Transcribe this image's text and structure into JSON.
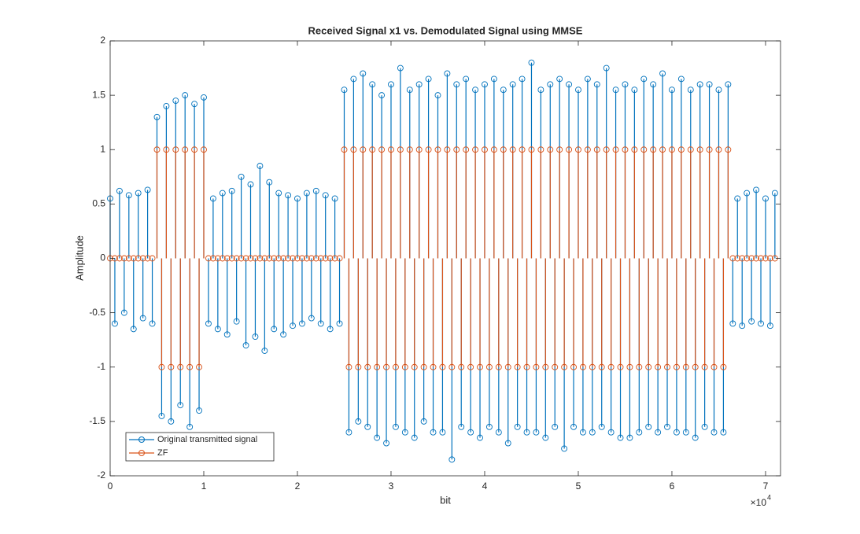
{
  "chart_data": {
    "type": "stem",
    "title": "Received Signal x1 vs. Demodulated Signal using MMSE",
    "xlabel": "bit",
    "ylabel": "Amplitude",
    "x_multiplier_base": "×10",
    "x_multiplier_exp": "4",
    "xlim": [
      0,
      71600
    ],
    "ylim": [
      -2,
      2
    ],
    "xticks": [
      0,
      {
        "value": 10000,
        "label": "1"
      },
      {
        "value": 20000,
        "label": "2"
      },
      {
        "value": 30000,
        "label": "3"
      },
      {
        "value": 40000,
        "label": "4"
      },
      {
        "value": 50000,
        "label": "5"
      },
      {
        "value": 60000,
        "label": "6"
      },
      {
        "value": 70000,
        "label": "7"
      }
    ],
    "yticks": [
      -2,
      -1.5,
      -1,
      -0.5,
      0,
      0.5,
      1,
      1.5,
      2
    ],
    "legend": "lower left",
    "x": [
      0,
      500,
      1000,
      1500,
      2000,
      2500,
      3000,
      3500,
      4000,
      4500,
      5000,
      5500,
      6000,
      6500,
      7000,
      7500,
      8000,
      8500,
      9000,
      9500,
      10000,
      10500,
      11000,
      11500,
      12000,
      12500,
      13000,
      13500,
      14000,
      14500,
      15000,
      15500,
      16000,
      16500,
      17000,
      17500,
      18000,
      18500,
      19000,
      19500,
      20000,
      20500,
      21000,
      21500,
      22000,
      22500,
      23000,
      23500,
      24000,
      24500,
      25000,
      25500,
      26000,
      26500,
      27000,
      27500,
      28000,
      28500,
      29000,
      29500,
      30000,
      30500,
      31000,
      31500,
      32000,
      32500,
      33000,
      33500,
      34000,
      34500,
      35000,
      35500,
      36000,
      36500,
      37000,
      37500,
      38000,
      38500,
      39000,
      39500,
      40000,
      40500,
      41000,
      41500,
      42000,
      42500,
      43000,
      43500,
      44000,
      44500,
      45000,
      45500,
      46000,
      46500,
      47000,
      47500,
      48000,
      48500,
      49000,
      49500,
      50000,
      50500,
      51000,
      51500,
      52000,
      52500,
      53000,
      53500,
      54000,
      54500,
      55000,
      55500,
      56000,
      56500,
      57000,
      57500,
      58000,
      58500,
      59000,
      59500,
      60000,
      60500,
      61000,
      61500,
      62000,
      62500,
      63000,
      63500,
      64000,
      64500,
      65000,
      65500,
      66000,
      66500,
      67000,
      67500,
      68000,
      68500,
      69000,
      69500,
      70000,
      70500,
      71000
    ],
    "series": [
      {
        "name": "Original transmitted signal",
        "color": "#0072BD",
        "values": [
          0.55,
          -0.6,
          0.62,
          -0.5,
          0.58,
          -0.65,
          0.6,
          -0.55,
          0.63,
          -0.6,
          1.3,
          -1.45,
          1.4,
          -1.5,
          1.45,
          -1.35,
          1.5,
          -1.55,
          1.42,
          -1.4,
          1.48,
          -0.6,
          0.55,
          -0.65,
          0.6,
          -0.7,
          0.62,
          -0.58,
          0.75,
          -0.8,
          0.68,
          -0.72,
          0.85,
          -0.85,
          0.7,
          -0.65,
          0.6,
          -0.7,
          0.58,
          -0.62,
          0.55,
          -0.6,
          0.6,
          -0.55,
          0.62,
          -0.6,
          0.58,
          -0.65,
          0.55,
          -0.6,
          1.55,
          -1.6,
          1.65,
          -1.5,
          1.7,
          -1.55,
          1.6,
          -1.65,
          1.5,
          -1.7,
          1.6,
          -1.55,
          1.75,
          -1.6,
          1.55,
          -1.65,
          1.6,
          -1.5,
          1.65,
          -1.6,
          1.5,
          -1.6,
          1.7,
          -1.85,
          1.6,
          -1.55,
          1.65,
          -1.6,
          1.55,
          -1.65,
          1.6,
          -1.55,
          1.65,
          -1.6,
          1.55,
          -1.7,
          1.6,
          -1.55,
          1.65,
          -1.6,
          1.8,
          -1.6,
          1.55,
          -1.65,
          1.6,
          -1.55,
          1.65,
          -1.75,
          1.6,
          -1.55,
          1.55,
          -1.6,
          1.65,
          -1.6,
          1.6,
          -1.55,
          1.75,
          -1.6,
          1.55,
          -1.65,
          1.6,
          -1.65,
          1.55,
          -1.6,
          1.65,
          -1.55,
          1.6,
          -1.6,
          1.7,
          -1.55,
          1.55,
          -1.6,
          1.65,
          -1.6,
          1.55,
          -1.65,
          1.6,
          -1.55,
          1.6,
          -1.6,
          1.55,
          -1.6,
          1.6,
          -0.6,
          0.55,
          -0.62,
          0.6,
          -0.58,
          0.63,
          -0.6,
          0.55,
          -0.62,
          0.6
        ]
      },
      {
        "name": "ZF",
        "color": "#D95319",
        "values": [
          0,
          0,
          0,
          0,
          0,
          0,
          0,
          0,
          0,
          0,
          1,
          -1,
          1,
          -1,
          1,
          -1,
          1,
          -1,
          1,
          -1,
          1,
          0,
          0,
          0,
          0,
          0,
          0,
          0,
          0,
          0,
          0,
          0,
          0,
          0,
          0,
          0,
          0,
          0,
          0,
          0,
          0,
          0,
          0,
          0,
          0,
          0,
          0,
          0,
          0,
          0,
          1,
          -1,
          1,
          -1,
          1,
          -1,
          1,
          -1,
          1,
          -1,
          1,
          -1,
          1,
          -1,
          1,
          -1,
          1,
          -1,
          1,
          -1,
          1,
          -1,
          1,
          -1,
          1,
          -1,
          1,
          -1,
          1,
          -1,
          1,
          -1,
          1,
          -1,
          1,
          -1,
          1,
          -1,
          1,
          -1,
          1,
          -1,
          1,
          -1,
          1,
          -1,
          1,
          -1,
          1,
          -1,
          1,
          -1,
          1,
          -1,
          1,
          -1,
          1,
          -1,
          1,
          -1,
          1,
          -1,
          1,
          -1,
          1,
          -1,
          1,
          -1,
          1,
          -1,
          1,
          -1,
          1,
          -1,
          1,
          -1,
          1,
          -1,
          1,
          -1,
          1,
          -1,
          1,
          0,
          0,
          0,
          0,
          0,
          0,
          0,
          0,
          0,
          0
        ]
      }
    ]
  }
}
